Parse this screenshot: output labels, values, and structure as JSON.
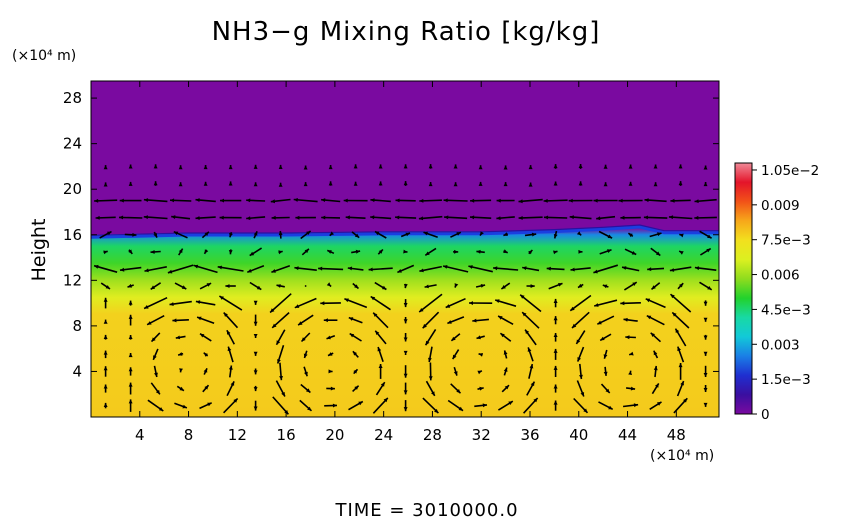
{
  "chart_data": {
    "type": "heatmap",
    "title": "NH3−g Mixing Ratio [kg/kg]",
    "xlabel": "",
    "ylabel": "Height",
    "x_unit": "(×10⁴ m)",
    "y_unit": "(×10⁴ m)",
    "footer": "TIME = 3010000.0",
    "xlim": [
      0,
      51.5
    ],
    "ylim": [
      0,
      29.5
    ],
    "x_ticks": [
      "4",
      "8",
      "12",
      "16",
      "20",
      "24",
      "28",
      "32",
      "36",
      "40",
      "44",
      "48"
    ],
    "y_ticks": [
      "4",
      "8",
      "12",
      "16",
      "20",
      "24",
      "28"
    ],
    "x_tick_values": [
      4,
      8,
      12,
      16,
      20,
      24,
      28,
      32,
      36,
      40,
      44,
      48
    ],
    "y_tick_values": [
      4,
      8,
      12,
      16,
      20,
      24,
      28
    ],
    "colorbar": {
      "min": 0,
      "max": 0.0108,
      "tick_labels": [
        "0",
        "1.5e−3",
        "0.003",
        "4.5e−3",
        "0.006",
        "7.5e−3",
        "0.009",
        "1.05e−2"
      ],
      "tick_values": [
        0,
        0.0015,
        0.003,
        0.0045,
        0.006,
        0.0075,
        0.009,
        0.0105
      ],
      "colors": [
        "#7a0aa0",
        "#3a0fa0",
        "#1f2fd0",
        "#1a7fe6",
        "#12c9d8",
        "#18d9a4",
        "#22d22c",
        "#8fdc1e",
        "#dcf020",
        "#f2e01e",
        "#f7a81a",
        "#f25218",
        "#e4142a",
        "#f08a98"
      ]
    },
    "field_profile": [
      {
        "height": 0,
        "value": 0.0078
      },
      {
        "height": 9,
        "value": 0.0077
      },
      {
        "height": 10.5,
        "value": 0.0068
      },
      {
        "height": 12,
        "value": 0.006
      },
      {
        "height": 13.5,
        "value": 0.0052
      },
      {
        "height": 15,
        "value": 0.0046
      },
      {
        "height": 16,
        "value": 0.0026
      },
      {
        "height": 16.6,
        "value": 0
      },
      {
        "height": 29.5,
        "value": 0
      }
    ],
    "interface_height": [
      {
        "x": 0,
        "y": 16.0
      },
      {
        "x": 8,
        "y": 16.2
      },
      {
        "x": 16,
        "y": 16.2
      },
      {
        "x": 24,
        "y": 16.3
      },
      {
        "x": 32,
        "y": 16.3
      },
      {
        "x": 38,
        "y": 16.5
      },
      {
        "x": 42,
        "y": 16.7
      },
      {
        "x": 45,
        "y": 16.9
      },
      {
        "x": 47,
        "y": 16.4
      },
      {
        "x": 51.5,
        "y": 16.4
      }
    ]
  }
}
